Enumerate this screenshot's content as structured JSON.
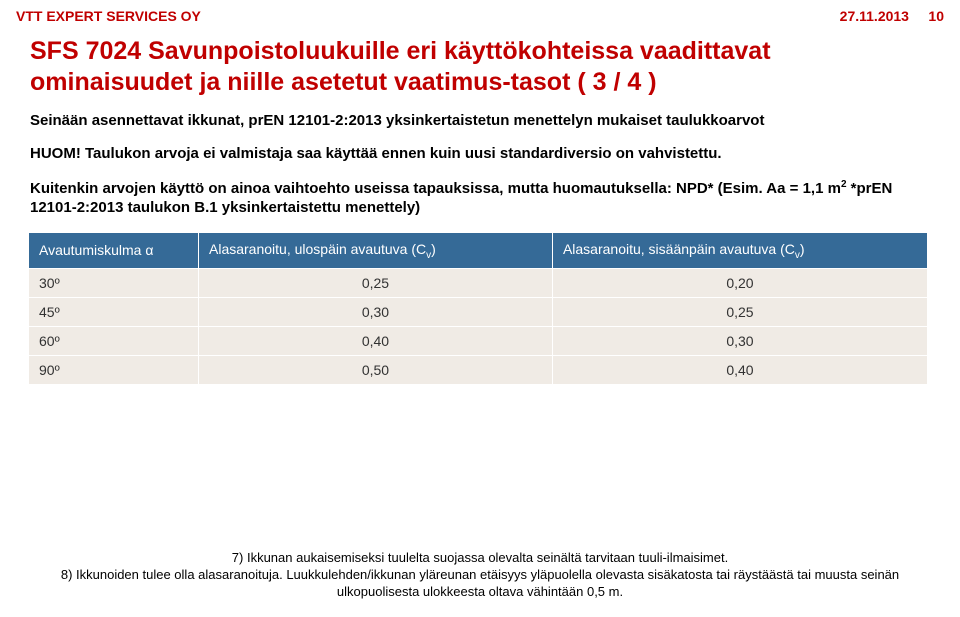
{
  "header": {
    "org": "VTT EXPERT SERVICES OY",
    "date": "27.11.2013",
    "page": "10"
  },
  "title_line1": "SFS 7024 Savunpoistoluukuille eri käyttökohteissa vaadittavat",
  "title_line2": "ominaisuudet ja niille asetetut vaatimus-tasot ( 3 / 4 )",
  "para1": "Seinään asennettavat ikkunat, prEN 12101-2:2013 yksinkertaistetun menettelyn mukaiset taulukkoarvot",
  "para2": "HUOM! Taulukon arvoja ei valmistaja saa käyttää ennen kuin uusi standardiversio on vahvistettu.",
  "para3_a": "Kuitenkin arvojen käyttö on ainoa vaihtoehto useissa tapauksissa, mutta huomautuksella: NPD* (Esim. Aa = 1,1 m",
  "para3_sup": "2",
  "para3_b": " *prEN 12101-2:2013 taulukon B.1 yksinkertaistettu menettely)",
  "table": {
    "columns": [
      {
        "label_a": "Avautumiskulma α",
        "label_b": ""
      },
      {
        "label_a": "Alasaranoitu, ulospäin avautuva (C",
        "label_sub": "v",
        "label_b": ")"
      },
      {
        "label_a": "Alasaranoitu, sisäänpäin avautuva (C",
        "label_sub": "v",
        "label_b": ")"
      }
    ],
    "rows": [
      [
        "30º",
        "0,25",
        "0,20"
      ],
      [
        "45º",
        "0,30",
        "0,25"
      ],
      [
        "60º",
        "0,40",
        "0,30"
      ],
      [
        "90º",
        "0,50",
        "0,40"
      ]
    ],
    "header_bg": "#356a97",
    "header_color": "#ffffff",
    "cell_bg": "#f0ebe5",
    "cell_color": "#323232"
  },
  "footer_line1": "7) Ikkunan aukaisemiseksi tuulelta suojassa olevalta seinältä tarvitaan tuuli-ilmaisimet.",
  "footer_line2": "8) Ikkunoiden tulee olla alasaranoituja. Luukkulehden/ikkunan yläreunan etäisyys yläpuolella olevasta sisäkatosta tai räystäästä tai muusta seinän ulkopuolisesta ulokkeesta oltava vähintään 0,5 m."
}
